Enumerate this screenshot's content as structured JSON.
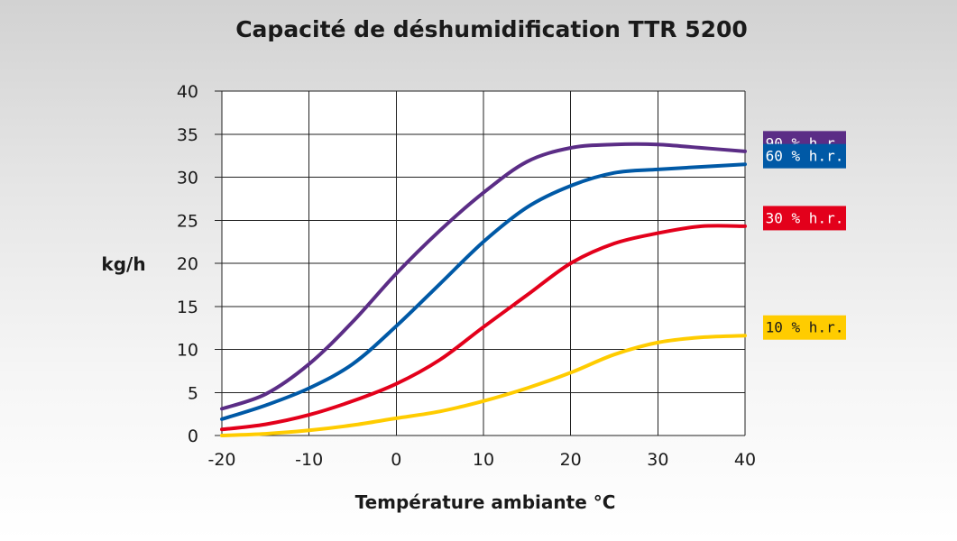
{
  "chart_data": {
    "type": "line",
    "title": "Capacité de déshumidification TTR 5200",
    "xlabel": "Température ambiante °C",
    "ylabel": "kg/h",
    "xlim": [
      -20,
      40
    ],
    "ylim": [
      0,
      40
    ],
    "xticks": [
      -20,
      -10,
      0,
      10,
      20,
      30,
      40
    ],
    "yticks": [
      0,
      5,
      10,
      15,
      20,
      25,
      30,
      35,
      40
    ],
    "grid": true,
    "legend_placement": "right, labels next to line ends",
    "series": [
      {
        "name": "90 % h.r.",
        "color": "#5b2d86",
        "x": [
          -20,
          -15,
          -10,
          -5,
          0,
          5,
          10,
          15,
          20,
          25,
          30,
          35,
          40
        ],
        "y": [
          3.1,
          4.8,
          8.3,
          13.2,
          18.8,
          23.8,
          28.2,
          31.8,
          33.4,
          33.8,
          33.8,
          33.4,
          33.0
        ]
      },
      {
        "name": "60 % h.r.",
        "color": "#0059a6",
        "x": [
          -20,
          -15,
          -10,
          -5,
          0,
          5,
          10,
          15,
          20,
          25,
          30,
          35,
          40
        ],
        "y": [
          1.9,
          3.5,
          5.5,
          8.3,
          12.7,
          17.6,
          22.5,
          26.5,
          29.0,
          30.5,
          30.9,
          31.2,
          31.5
        ]
      },
      {
        "name": "30 % h.r.",
        "color": "#e3001b",
        "x": [
          -20,
          -15,
          -10,
          -5,
          0,
          5,
          10,
          15,
          20,
          25,
          30,
          35,
          40
        ],
        "y": [
          0.7,
          1.3,
          2.4,
          4.0,
          6.0,
          8.8,
          12.6,
          16.3,
          20.0,
          22.3,
          23.5,
          24.3,
          24.3
        ]
      },
      {
        "name": "10 % h.r.",
        "color": "#ffcc00",
        "x": [
          -20,
          -15,
          -10,
          -5,
          0,
          5,
          10,
          15,
          20,
          25,
          30,
          35,
          40
        ],
        "y": [
          0.0,
          0.2,
          0.6,
          1.2,
          2.0,
          2.8,
          4.0,
          5.5,
          7.3,
          9.4,
          10.8,
          11.4,
          11.6
        ]
      }
    ]
  }
}
